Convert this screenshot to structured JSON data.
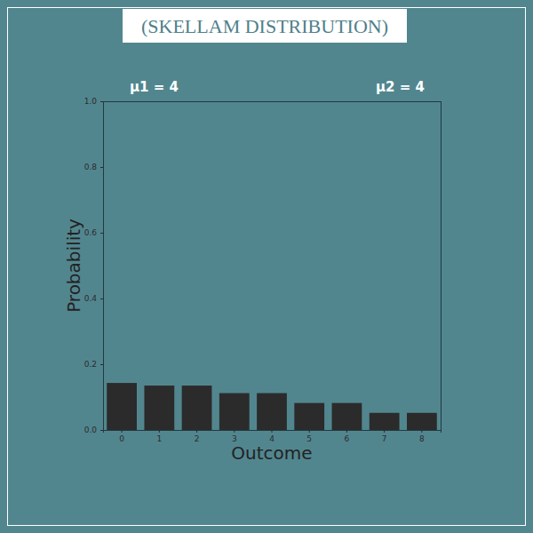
{
  "chart_data": {
    "type": "bar",
    "title": "(SKELLAM DISTRIBUTION)",
    "x_label": "Outcome",
    "y_label": "Probability",
    "annotations": [
      "μ1 = 4",
      "μ2 = 4"
    ],
    "categories": [
      "0",
      "1",
      "2",
      "3",
      "4",
      "5",
      "6",
      "7",
      "8"
    ],
    "values": [
      0.143,
      0.135,
      0.135,
      0.112,
      0.112,
      0.082,
      0.082,
      0.052,
      0.052
    ],
    "color": "#2b2b2b",
    "ylim": [
      0,
      1
    ],
    "yticks": [
      {
        "value": 0,
        "label": "0.0"
      },
      {
        "value": 0.2,
        "label": "0.2"
      },
      {
        "value": 0.4,
        "label": "0.4"
      },
      {
        "value": 0.6,
        "label": "0.6"
      },
      {
        "value": 0.8,
        "label": "0.8"
      },
      {
        "value": 1,
        "label": "1.0"
      }
    ],
    "grid": false
  }
}
